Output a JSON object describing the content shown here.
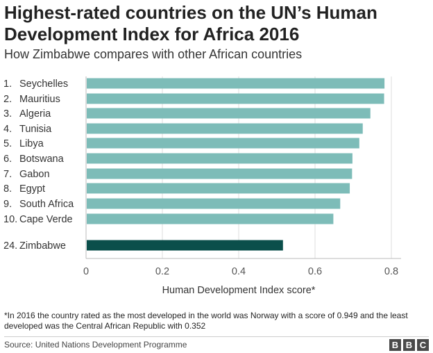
{
  "header": {
    "title": "Highest-rated countries on the UN’s Human Development Index for Africa 2016",
    "subtitle": "How Zimbabwe compares with other African countries"
  },
  "colors": {
    "bar_default": "#7dbcb8",
    "bar_highlight": "#0b4f4b",
    "gridline": "#dddddd",
    "axis": "#bbbbbb"
  },
  "chart_data": {
    "type": "bar",
    "orientation": "horizontal",
    "rows": [
      {
        "rank": "1.",
        "country": "Seychelles",
        "value": 0.782,
        "highlight": false
      },
      {
        "rank": "2.",
        "country": "Mauritius",
        "value": 0.781,
        "highlight": false
      },
      {
        "rank": "3.",
        "country": "Algeria",
        "value": 0.745,
        "highlight": false
      },
      {
        "rank": "4.",
        "country": "Tunisia",
        "value": 0.725,
        "highlight": false
      },
      {
        "rank": "5.",
        "country": "Libya",
        "value": 0.716,
        "highlight": false
      },
      {
        "rank": "6.",
        "country": "Botswana",
        "value": 0.698,
        "highlight": false
      },
      {
        "rank": "7.",
        "country": "Gabon",
        "value": 0.697,
        "highlight": false
      },
      {
        "rank": "8.",
        "country": "Egypt",
        "value": 0.691,
        "highlight": false
      },
      {
        "rank": "9.",
        "country": "South Africa",
        "value": 0.666,
        "highlight": false
      },
      {
        "rank": "10.",
        "country": "Cape Verde",
        "value": 0.648,
        "highlight": false
      },
      {
        "rank": "24.",
        "country": "Zimbabwe",
        "value": 0.516,
        "highlight": true
      }
    ],
    "xticks": [
      0,
      0.2,
      0.4,
      0.6,
      0.8
    ],
    "xtick_labels": [
      "0",
      "0.2",
      "0.4",
      "0.6",
      "0.8"
    ],
    "xlim": [
      0,
      0.8
    ],
    "xlabel": "Human Development Index score*",
    "grid": true
  },
  "footnote": "*In 2016 the country rated as the most developed in the world was Norway with a score of 0.949 and the least developed was the Central African Republic with 0.352",
  "source": "Source: United Nations Development Programme",
  "logo": {
    "letters": [
      "B",
      "B",
      "C"
    ]
  }
}
